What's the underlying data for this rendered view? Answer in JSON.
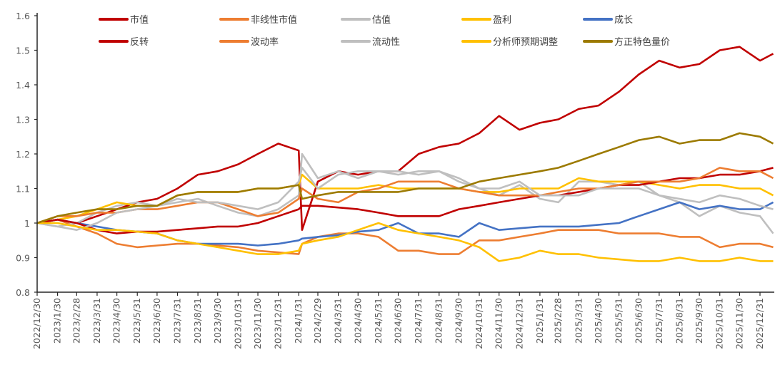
{
  "chart_data": {
    "type": "line",
    "title": "",
    "xlabel": "",
    "ylabel": "",
    "ylim": [
      0.8,
      1.6
    ],
    "yticks": [
      "0.8",
      "0.9",
      "1",
      "1.1",
      "1.2",
      "1.3",
      "1.4",
      "1.5",
      "1.6"
    ],
    "grid": false,
    "legend_placement": "top",
    "xticks": [
      "2022/12/30",
      "2023/1/30",
      "2023/2/28",
      "2023/3/31",
      "2023/4/30",
      "2023/5/31",
      "2023/6/30",
      "2023/7/31",
      "2023/8/31",
      "2023/9/30",
      "2023/10/31",
      "2023/11/30",
      "2023/12/31",
      "2024/1/31",
      "2024/2/29",
      "2024/3/31",
      "2024/4/30",
      "2024/5/31",
      "2024/6/30",
      "2024/7/31",
      "2024/8/31",
      "2024/9/30",
      "2024/10/31",
      "2024/11/30",
      "2024/12/31",
      "2025/1/31",
      "2025/2/28",
      "2025/3/31",
      "2025/4/30",
      "2025/5/31",
      "2025/6/30",
      "2025/7/31",
      "2025/8/31",
      "2025/9/30",
      "2025/10/31",
      "2025/11/30",
      "2025/12/31"
    ],
    "x": [
      "2022/12/30",
      "2023/1/30",
      "2023/2/28",
      "2023/3/31",
      "2023/4/30",
      "2023/5/31",
      "2023/6/30",
      "2023/7/31",
      "2023/8/31",
      "2023/9/30",
      "2023/10/31",
      "2023/11/30",
      "2023/12/31",
      "2024/1/31",
      "2024/2/5",
      "2024/2/29",
      "2024/3/31",
      "2024/4/30",
      "2024/5/31",
      "2024/6/30",
      "2024/7/31",
      "2024/8/31",
      "2024/9/30",
      "2024/10/31",
      "2024/11/30",
      "2024/12/31",
      "2025/1/31",
      "2025/2/28",
      "2025/3/31",
      "2025/4/30",
      "2025/5/31",
      "2025/6/30",
      "2025/7/31",
      "2025/8/31",
      "2025/9/30",
      "2025/10/31",
      "2025/11/30",
      "2025/12/31",
      "2026/1/20"
    ],
    "series": [
      {
        "name": "市值",
        "color": "#C00000",
        "values": [
          1.0,
          1.01,
          1.0,
          1.02,
          1.04,
          1.06,
          1.07,
          1.1,
          1.14,
          1.15,
          1.17,
          1.2,
          1.23,
          1.21,
          0.98,
          1.12,
          1.15,
          1.14,
          1.15,
          1.15,
          1.2,
          1.22,
          1.23,
          1.26,
          1.31,
          1.27,
          1.29,
          1.3,
          1.33,
          1.34,
          1.38,
          1.43,
          1.47,
          1.45,
          1.46,
          1.5,
          1.51,
          1.47,
          1.49
        ]
      },
      {
        "name": "非线性市值",
        "color": "#ED7D31",
        "values": [
          1.0,
          1.01,
          0.99,
          0.97,
          0.94,
          0.93,
          0.935,
          0.94,
          0.94,
          0.935,
          0.93,
          0.92,
          0.915,
          0.91,
          0.94,
          0.96,
          0.97,
          0.97,
          0.96,
          0.92,
          0.92,
          0.91,
          0.91,
          0.95,
          0.95,
          0.96,
          0.97,
          0.98,
          0.98,
          0.98,
          0.97,
          0.97,
          0.97,
          0.96,
          0.96,
          0.93,
          0.94,
          0.94,
          0.93
        ]
      },
      {
        "name": "估值",
        "color": "#BFBFBF",
        "values": [
          1.0,
          0.99,
          1.0,
          1.03,
          1.05,
          1.06,
          1.05,
          1.06,
          1.07,
          1.05,
          1.03,
          1.02,
          1.04,
          1.08,
          1.2,
          1.13,
          1.15,
          1.13,
          1.15,
          1.15,
          1.14,
          1.15,
          1.13,
          1.1,
          1.08,
          1.11,
          1.07,
          1.06,
          1.12,
          1.12,
          1.11,
          1.12,
          1.08,
          1.06,
          1.02,
          1.05,
          1.03,
          1.02,
          0.97
        ]
      },
      {
        "name": "盈利",
        "color": "#FFC000",
        "values": [
          1.0,
          1.01,
          1.02,
          1.04,
          1.06,
          1.05,
          1.05,
          1.08,
          1.09,
          1.09,
          1.09,
          1.1,
          1.1,
          1.11,
          1.14,
          1.1,
          1.1,
          1.1,
          1.11,
          1.1,
          1.1,
          1.1,
          1.1,
          1.09,
          1.09,
          1.1,
          1.1,
          1.1,
          1.13,
          1.12,
          1.12,
          1.12,
          1.11,
          1.1,
          1.11,
          1.11,
          1.1,
          1.1,
          1.08
        ]
      },
      {
        "name": "成长",
        "color": "#4472C4",
        "values": [
          1.0,
          1.01,
          1.0,
          0.99,
          0.98,
          0.975,
          0.97,
          0.95,
          0.94,
          0.94,
          0.94,
          0.935,
          0.94,
          0.95,
          0.955,
          0.96,
          0.965,
          0.975,
          0.98,
          1.0,
          0.97,
          0.97,
          0.96,
          1.0,
          0.98,
          0.985,
          0.99,
          0.99,
          0.99,
          0.995,
          1.0,
          1.02,
          1.04,
          1.06,
          1.04,
          1.05,
          1.04,
          1.04,
          1.06
        ]
      },
      {
        "name": "反转",
        "color": "#C00000",
        "values": [
          1.0,
          1.01,
          1.0,
          0.98,
          0.97,
          0.975,
          0.975,
          0.98,
          0.985,
          0.99,
          0.99,
          1.0,
          1.02,
          1.04,
          1.05,
          1.05,
          1.045,
          1.04,
          1.03,
          1.02,
          1.02,
          1.02,
          1.04,
          1.05,
          1.06,
          1.07,
          1.08,
          1.08,
          1.09,
          1.1,
          1.11,
          1.11,
          1.12,
          1.13,
          1.13,
          1.14,
          1.14,
          1.15,
          1.16
        ]
      },
      {
        "name": "波动率",
        "color": "#ED7D31",
        "values": [
          1.0,
          1.02,
          1.02,
          1.03,
          1.03,
          1.04,
          1.04,
          1.05,
          1.06,
          1.06,
          1.04,
          1.02,
          1.03,
          1.07,
          1.1,
          1.07,
          1.06,
          1.09,
          1.1,
          1.12,
          1.12,
          1.12,
          1.1,
          1.09,
          1.08,
          1.08,
          1.08,
          1.09,
          1.1,
          1.1,
          1.11,
          1.12,
          1.12,
          1.12,
          1.13,
          1.16,
          1.15,
          1.15,
          1.13
        ]
      },
      {
        "name": "流动性",
        "color": "#BFBFBF",
        "values": [
          1.0,
          0.99,
          0.98,
          1.0,
          1.03,
          1.04,
          1.05,
          1.07,
          1.06,
          1.06,
          1.05,
          1.04,
          1.06,
          1.12,
          1.16,
          1.1,
          1.14,
          1.15,
          1.15,
          1.14,
          1.15,
          1.15,
          1.12,
          1.1,
          1.1,
          1.12,
          1.08,
          1.08,
          1.08,
          1.1,
          1.1,
          1.1,
          1.08,
          1.07,
          1.06,
          1.08,
          1.07,
          1.05,
          1.04
        ]
      },
      {
        "name": "分析师预期调整",
        "color": "#FFC000",
        "values": [
          1.0,
          1.0,
          0.99,
          0.98,
          0.98,
          0.975,
          0.97,
          0.95,
          0.94,
          0.93,
          0.92,
          0.91,
          0.91,
          0.92,
          0.94,
          0.95,
          0.96,
          0.98,
          1.0,
          0.98,
          0.97,
          0.96,
          0.95,
          0.93,
          0.89,
          0.9,
          0.92,
          0.91,
          0.91,
          0.9,
          0.895,
          0.89,
          0.89,
          0.9,
          0.89,
          0.89,
          0.9,
          0.89,
          0.89
        ]
      },
      {
        "name": "方正特色量价",
        "color": "#9C7A00",
        "values": [
          1.0,
          1.02,
          1.03,
          1.04,
          1.04,
          1.05,
          1.05,
          1.08,
          1.09,
          1.09,
          1.09,
          1.1,
          1.1,
          1.11,
          1.07,
          1.08,
          1.09,
          1.09,
          1.09,
          1.09,
          1.1,
          1.1,
          1.1,
          1.12,
          1.13,
          1.14,
          1.15,
          1.16,
          1.18,
          1.2,
          1.22,
          1.24,
          1.25,
          1.23,
          1.24,
          1.24,
          1.26,
          1.25,
          1.23
        ]
      }
    ]
  }
}
